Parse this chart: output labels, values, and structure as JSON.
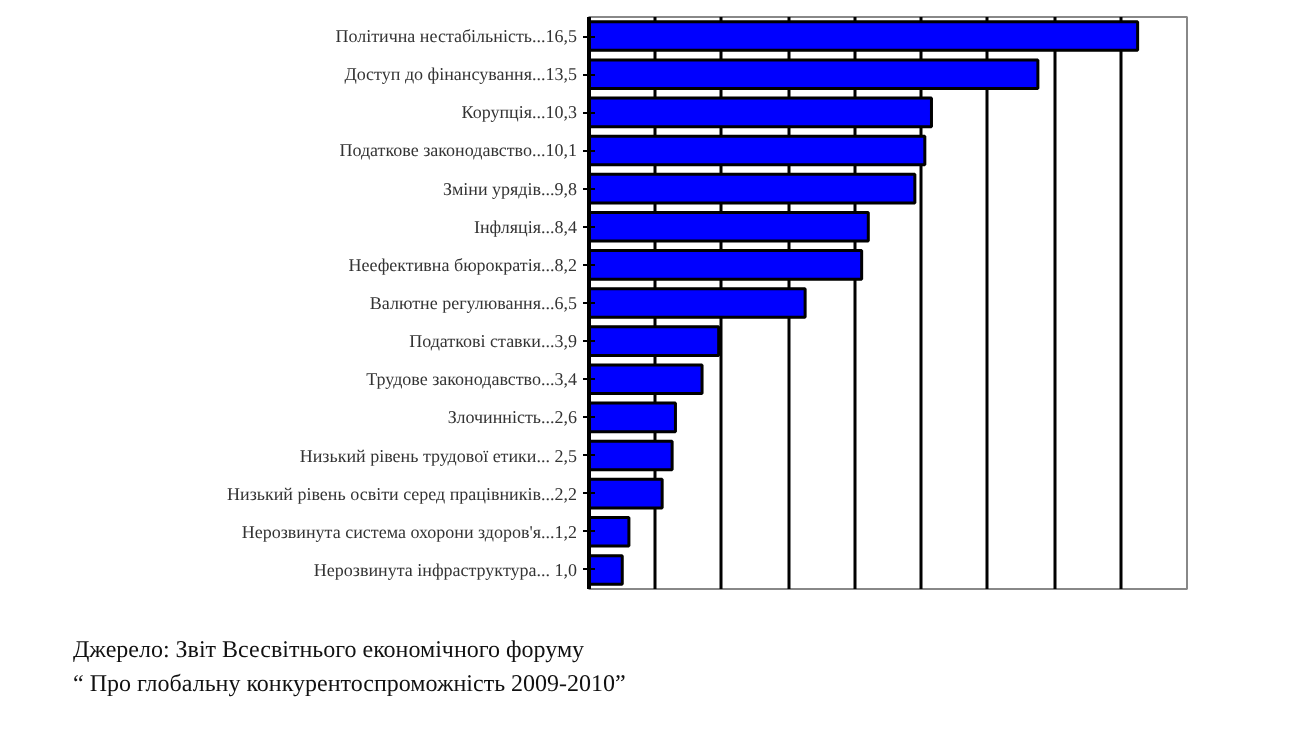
{
  "chart_data": {
    "type": "bar",
    "orientation": "horizontal",
    "categories": [
      "Політична нестабільність",
      "Доступ до фінансування",
      "Корупція",
      "Податкове законодавство",
      "Зміни урядів",
      "Інфляція",
      "Неефективна бюрократія",
      "Валютне регулювання",
      "Податкові ставки",
      "Трудове законодавство",
      "Злочинність",
      "Низький рівень трудової етики",
      "Низький рівень освіти серед працівників",
      "Нерозвинута система охорони здоров'я",
      "Нерозвинута інфраструктура"
    ],
    "values": [
      16.5,
      13.5,
      10.3,
      10.1,
      9.8,
      8.4,
      8.2,
      6.5,
      3.9,
      3.4,
      2.6,
      2.5,
      2.2,
      1.2,
      1.0
    ],
    "value_labels": [
      "...16,5",
      "...13,5",
      "...10,3",
      "...10,1",
      "...9,8",
      "...8,4",
      "...8,2",
      "...6,5",
      "...3,9",
      "...3,4",
      "...2,6",
      "... 2,5",
      "...2,2",
      "...1,2",
      "... 1,0"
    ],
    "color": "#0000ff",
    "grid": "x",
    "tick_labels": "y",
    "annotations": [
      "Джерело:  Звіт Всесвітнього економічного форуму",
      "“ Про глобальну конкурентоспроможність 2009-2010”"
    ]
  }
}
